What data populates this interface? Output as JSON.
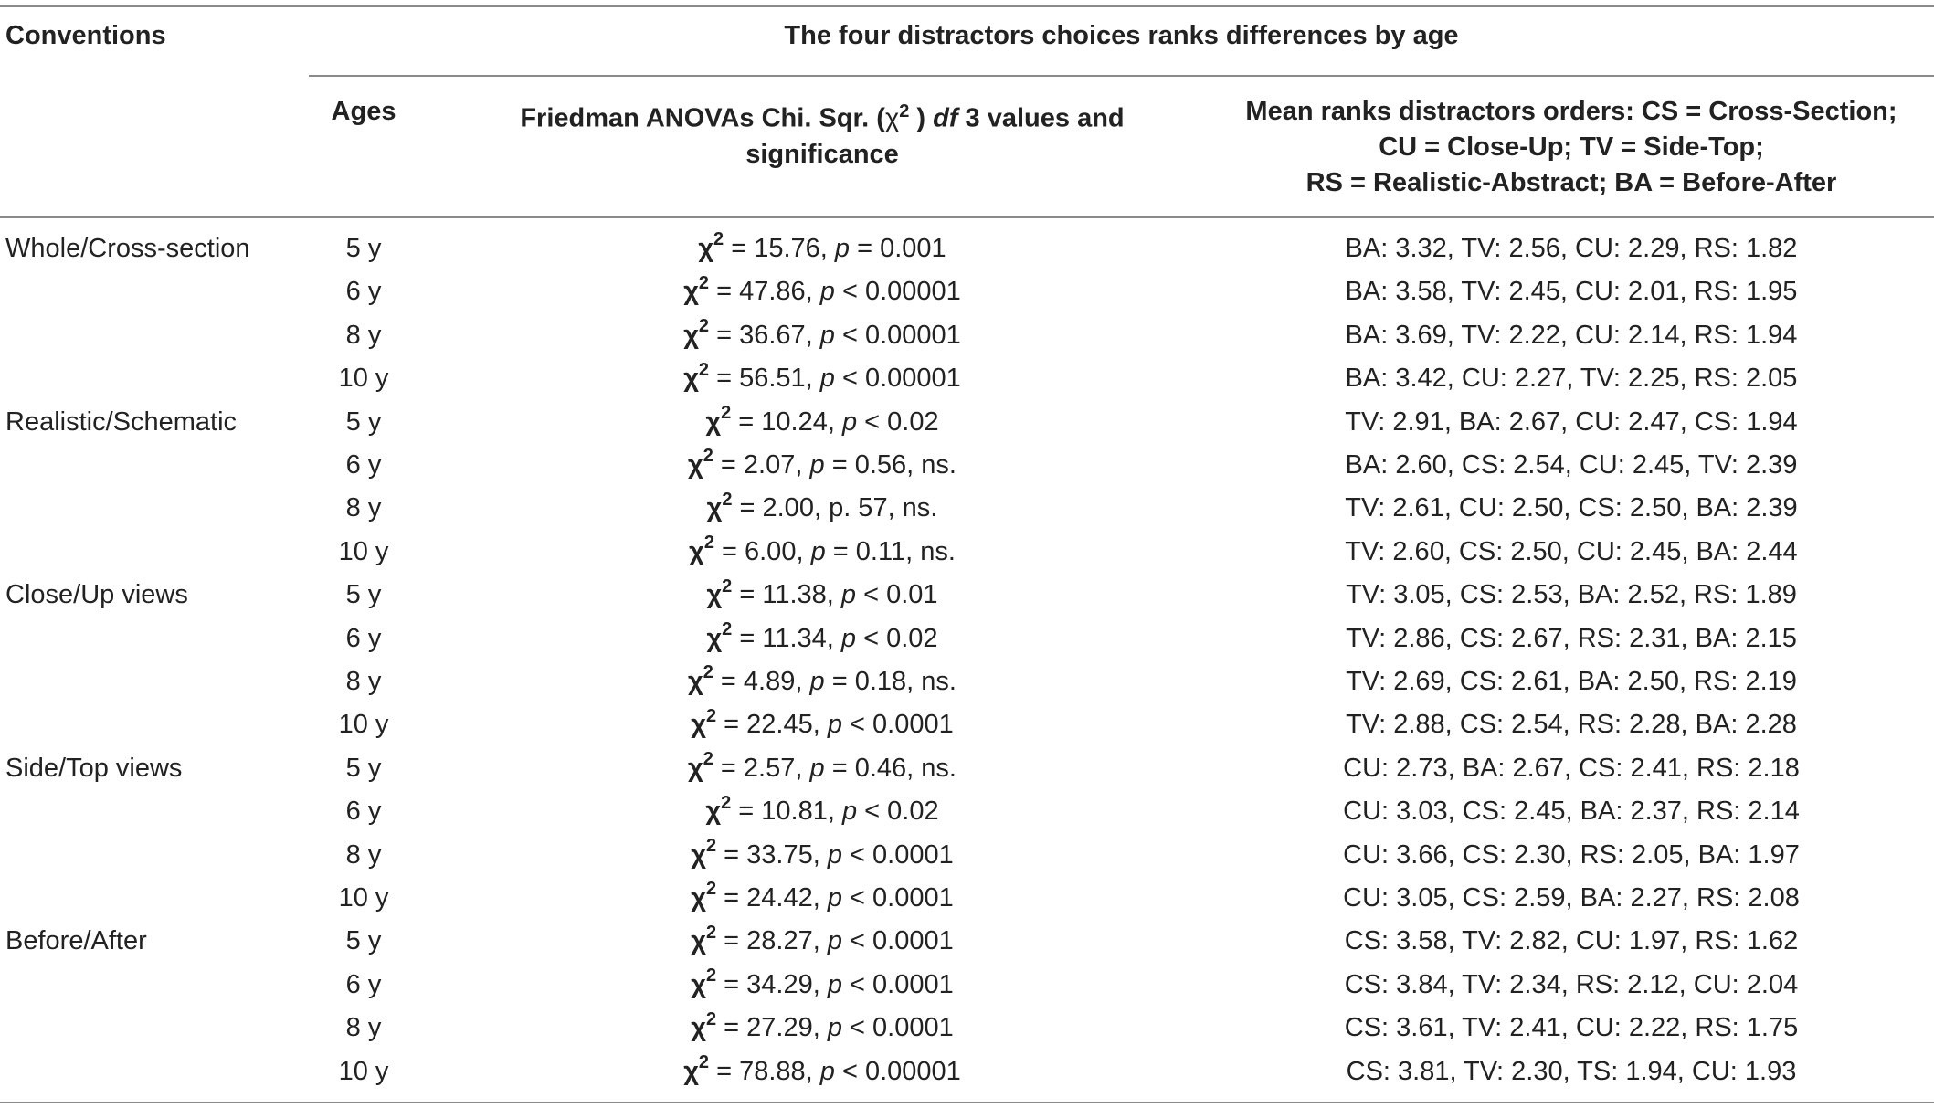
{
  "header": {
    "conventions": "Conventions",
    "group_title": "The four distractors choices ranks differences by age",
    "ages": "Ages",
    "friedman_line1_pre": "Friedman ANOVAs Chi. Sqr. (",
    "chi_symbol": "χ",
    "sup2": "2",
    "friedman_line1_mid": " ) ",
    "df": "df",
    "friedman_line1_post": " 3 values and",
    "friedman_line2": "significance",
    "mean_line1": "Mean ranks distractors orders: CS = Cross-Section;",
    "mean_line2": "CU = Close-Up; TV = Side-Top;",
    "mean_line3": "RS = Realistic-Abstract; BA = Before-After"
  },
  "rows": [
    {
      "convention": "Whole/Cross-section",
      "age": "5 y",
      "chi": "15.76",
      "op": "=",
      "p": "0.001",
      "ns": "",
      "mean": "BA: 3.32, TV: 2.56, CU: 2.29, RS: 1.82"
    },
    {
      "convention": "",
      "age": "6 y",
      "chi": "47.86",
      "op": "<",
      "p": "0.00001",
      "ns": "",
      "mean": "BA: 3.58, TV: 2.45, CU: 2.01, RS: 1.95"
    },
    {
      "convention": "",
      "age": "8 y",
      "chi": "36.67",
      "op": "<",
      "p": "0.00001",
      "ns": "",
      "mean": "BA: 3.69, TV: 2.22, CU: 2.14, RS: 1.94"
    },
    {
      "convention": "",
      "age": "10 y",
      "chi": "56.51",
      "op": "<",
      "p": "0.00001",
      "ns": "",
      "mean": "BA: 3.42, CU: 2.27, TV: 2.25, RS: 2.05"
    },
    {
      "convention": "Realistic/Schematic",
      "age": "5 y",
      "chi": "10.24",
      "op": "<",
      "p": "0.02",
      "ns": "",
      "mean": "TV: 2.91, BA: 2.67, CU: 2.47, CS: 1.94"
    },
    {
      "convention": "",
      "age": "6 y",
      "chi": "2.07",
      "op": "=",
      "p": "0.56",
      "ns": ", ns.",
      "mean": "BA: 2.60, CS: 2.54, CU: 2.45, TV: 2.39"
    },
    {
      "convention": "",
      "age": "8 y",
      "chi": "2.00",
      "op": "",
      "p": "",
      "ns": ", p. 57, ns.",
      "mean": "TV: 2.61, CU: 2.50, CS: 2.50, BA: 2.39"
    },
    {
      "convention": "",
      "age": "10 y",
      "chi": "6.00",
      "op": "=",
      "p": "0.11",
      "ns": ", ns.",
      "mean": "TV: 2.60, CS: 2.50, CU: 2.45, BA: 2.44"
    },
    {
      "convention": "Close/Up views",
      "age": "5 y",
      "chi": "11.38",
      "op": "<",
      "p": "0.01",
      "ns": "",
      "mean": "TV: 3.05, CS: 2.53, BA: 2.52, RS: 1.89"
    },
    {
      "convention": "",
      "age": "6 y",
      "chi": "11.34",
      "op": "<",
      "p": "0.02",
      "ns": "",
      "mean": "TV: 2.86, CS: 2.67, RS: 2.31, BA: 2.15"
    },
    {
      "convention": "",
      "age": "8 y",
      "chi": "4.89",
      "op": "=",
      "p": "0.18",
      "ns": ", ns.",
      "mean": "TV: 2.69, CS: 2.61, BA: 2.50, RS: 2.19"
    },
    {
      "convention": "",
      "age": "10 y",
      "chi": "22.45",
      "op": "<",
      "p": "0.0001",
      "ns": "",
      "mean": "TV: 2.88, CS: 2.54, RS: 2.28, BA: 2.28"
    },
    {
      "convention": "Side/Top views",
      "age": "5 y",
      "chi": "2.57",
      "op": "=",
      "p": "0.46",
      "ns": ", ns.",
      "mean": "CU: 2.73, BA: 2.67, CS: 2.41, RS: 2.18"
    },
    {
      "convention": "",
      "age": "6 y",
      "chi": "10.81",
      "op": "<",
      "p": "0.02",
      "ns": "",
      "mean": "CU: 3.03, CS: 2.45, BA: 2.37, RS: 2.14"
    },
    {
      "convention": "",
      "age": "8 y",
      "chi": "33.75",
      "op": "<",
      "p": "0.0001",
      "ns": "",
      "mean": "CU: 3.66, CS: 2.30, RS: 2.05, BA: 1.97"
    },
    {
      "convention": "",
      "age": "10 y",
      "chi": "24.42",
      "op": "<",
      "p": "0.0001",
      "ns": "",
      "mean": "CU: 3.05, CS: 2.59, BA: 2.27, RS: 2.08"
    },
    {
      "convention": "Before/After",
      "age": "5 y",
      "chi": "28.27",
      "op": "<",
      "p": "0.0001",
      "ns": "",
      "mean": "CS: 3.58, TV: 2.82, CU: 1.97, RS: 1.62"
    },
    {
      "convention": "",
      "age": "6 y",
      "chi": "34.29",
      "op": "<",
      "p": "0.0001",
      "ns": "",
      "mean": "CS: 3.84, TV: 2.34, RS: 2.12, CU: 2.04"
    },
    {
      "convention": "",
      "age": "8 y",
      "chi": "27.29",
      "op": "<",
      "p": "0.0001",
      "ns": "",
      "mean": "CS: 3.61, TV: 2.41, CU: 2.22, RS: 1.75"
    },
    {
      "convention": "",
      "age": "10 y",
      "chi": "78.88",
      "op": "<",
      "p": "0.00001",
      "ns": "",
      "mean": "CS: 3.81, TV: 2.30, TS: 1.94, CU: 1.93"
    }
  ]
}
